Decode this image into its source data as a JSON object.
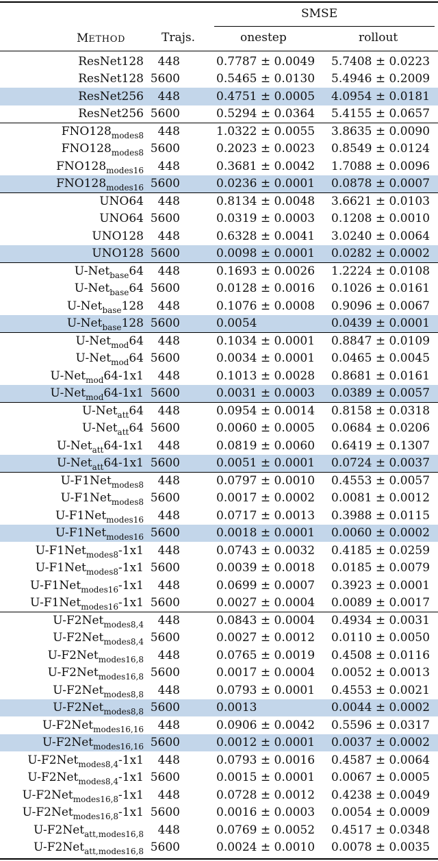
{
  "header": {
    "group_label": "SMSE",
    "method_label_first": "M",
    "method_label_rest": "ETHOD",
    "trajs_label": "Trajs.",
    "onestep_label": "onestep",
    "rollout_label": "rollout"
  },
  "rows": [
    {
      "base": "ResNet128",
      "sub": "",
      "suffix": "",
      "traj": "448",
      "onestep": "0.7787 ± 0.0049",
      "rollout": "5.7408 ± 0.0223",
      "highlight": false
    },
    {
      "base": "ResNet128",
      "sub": "",
      "suffix": "",
      "traj": "5600",
      "onestep": "0.5465 ± 0.0130",
      "rollout": "5.4946 ± 0.2009",
      "highlight": false
    },
    {
      "base": "ResNet256",
      "sub": "",
      "suffix": "",
      "traj": "448",
      "onestep": "0.4751 ± 0.0005",
      "rollout": "4.0954 ± 0.0181",
      "highlight": true
    },
    {
      "base": "ResNet256",
      "sub": "",
      "suffix": "",
      "traj": "5600",
      "onestep": "0.5294 ± 0.0364",
      "rollout": "5.4155 ± 0.0657",
      "highlight": false
    },
    {
      "base": "FNO128",
      "sub": "modes8",
      "suffix": "",
      "traj": "448",
      "onestep": "1.0322 ± 0.0055",
      "rollout": "3.8635 ± 0.0090",
      "highlight": false
    },
    {
      "base": "FNO128",
      "sub": "modes8",
      "suffix": "",
      "traj": "5600",
      "onestep": "0.2023 ± 0.0023",
      "rollout": "0.8549 ± 0.0124",
      "highlight": false
    },
    {
      "base": "FNO128",
      "sub": "modes16",
      "suffix": "",
      "traj": "448",
      "onestep": "0.3681 ± 0.0042",
      "rollout": "1.7088 ± 0.0096",
      "highlight": false
    },
    {
      "base": "FNO128",
      "sub": "modes16",
      "suffix": "",
      "traj": "5600",
      "onestep": "0.0236 ± 0.0001",
      "rollout": "0.0878 ± 0.0007",
      "highlight": true
    },
    {
      "base": "UNO64",
      "sub": "",
      "suffix": "",
      "traj": "448",
      "onestep": "0.8134 ± 0.0048",
      "rollout": "3.6621 ± 0.0103",
      "highlight": false
    },
    {
      "base": "UNO64",
      "sub": "",
      "suffix": "",
      "traj": "5600",
      "onestep": "0.0319 ± 0.0003",
      "rollout": "0.1208 ± 0.0010",
      "highlight": false
    },
    {
      "base": "UNO128",
      "sub": "",
      "suffix": "",
      "traj": "448",
      "onestep": "0.6328 ± 0.0041",
      "rollout": "3.0240 ± 0.0064",
      "highlight": false
    },
    {
      "base": "UNO128",
      "sub": "",
      "suffix": "",
      "traj": "5600",
      "onestep": "0.0098 ± 0.0001",
      "rollout": "0.0282 ± 0.0002",
      "highlight": true
    },
    {
      "base": "U-Net",
      "sub": "base",
      "suffix": "64",
      "traj": "448",
      "onestep": "0.1693 ± 0.0026",
      "rollout": "1.2224 ± 0.0108",
      "highlight": false
    },
    {
      "base": "U-Net",
      "sub": "base",
      "suffix": "64",
      "traj": "5600",
      "onestep": "0.0128 ± 0.0016",
      "rollout": "0.1026 ± 0.0161",
      "highlight": false
    },
    {
      "base": "U-Net",
      "sub": "base",
      "suffix": "128",
      "traj": "448",
      "onestep": "0.1076 ± 0.0008",
      "rollout": "0.9096 ± 0.0067",
      "highlight": false
    },
    {
      "base": "U-Net",
      "sub": "base",
      "suffix": "128",
      "traj": "5600",
      "onestep": "0.0054",
      "rollout": "0.0439 ± 0.0001",
      "highlight": true
    },
    {
      "base": "U-Net",
      "sub": "mod",
      "suffix": "64",
      "traj": "448",
      "onestep": "0.1034 ± 0.0001",
      "rollout": "0.8847 ± 0.0109",
      "highlight": false
    },
    {
      "base": "U-Net",
      "sub": "mod",
      "suffix": "64",
      "traj": "5600",
      "onestep": "0.0034 ± 0.0001",
      "rollout": "0.0465 ± 0.0045",
      "highlight": false
    },
    {
      "base": "U-Net",
      "sub": "mod",
      "suffix": "64-1x1",
      "traj": "448",
      "onestep": "0.1013 ± 0.0028",
      "rollout": "0.8681 ± 0.0161",
      "highlight": false
    },
    {
      "base": "U-Net",
      "sub": "mod",
      "suffix": "64-1x1",
      "traj": "5600",
      "onestep": "0.0031 ± 0.0003",
      "rollout": "0.0389 ± 0.0057",
      "highlight": true
    },
    {
      "base": "U-Net",
      "sub": "att",
      "suffix": "64",
      "traj": "448",
      "onestep": "0.0954 ± 0.0014",
      "rollout": "0.8158 ± 0.0318",
      "highlight": false
    },
    {
      "base": "U-Net",
      "sub": "att",
      "suffix": "64",
      "traj": "5600",
      "onestep": "0.0060 ± 0.0005",
      "rollout": "0.0684 ± 0.0206",
      "highlight": false
    },
    {
      "base": "U-Net",
      "sub": "att",
      "suffix": "64-1x1",
      "traj": "448",
      "onestep": "0.0819 ± 0.0060",
      "rollout": "0.6419 ± 0.1307",
      "highlight": false
    },
    {
      "base": "U-Net",
      "sub": "att",
      "suffix": "64-1x1",
      "traj": "5600",
      "onestep": "0.0051 ± 0.0001",
      "rollout": "0.0724 ± 0.0037",
      "highlight": true
    },
    {
      "base": "U-F1Net",
      "sub": "modes8",
      "suffix": "",
      "traj": "448",
      "onestep": "0.0797 ± 0.0010",
      "rollout": "0.4553 ± 0.0057",
      "highlight": false
    },
    {
      "base": "U-F1Net",
      "sub": "modes8",
      "suffix": "",
      "traj": "5600",
      "onestep": "0.0017 ± 0.0002",
      "rollout": "0.0081 ± 0.0012",
      "highlight": false
    },
    {
      "base": "U-F1Net",
      "sub": "modes16",
      "suffix": "",
      "traj": "448",
      "onestep": "0.0717 ± 0.0013",
      "rollout": "0.3988 ± 0.0115",
      "highlight": false
    },
    {
      "base": "U-F1Net",
      "sub": "modes16",
      "suffix": "",
      "traj": "5600",
      "onestep": "0.0018 ± 0.0001",
      "rollout": "0.0060 ± 0.0002",
      "highlight": true
    },
    {
      "base": "U-F1Net",
      "sub": "modes8",
      "suffix": "-1x1",
      "traj": "448",
      "onestep": "0.0743 ± 0.0032",
      "rollout": "0.4185 ± 0.0259",
      "highlight": false
    },
    {
      "base": "U-F1Net",
      "sub": "modes8",
      "suffix": "-1x1",
      "traj": "5600",
      "onestep": "0.0039 ± 0.0018",
      "rollout": "0.0185 ± 0.0079",
      "highlight": false
    },
    {
      "base": "U-F1Net",
      "sub": "modes16",
      "suffix": "-1x1",
      "traj": "448",
      "onestep": "0.0699 ± 0.0007",
      "rollout": "0.3923 ± 0.0001",
      "highlight": false
    },
    {
      "base": "U-F1Net",
      "sub": "modes16",
      "suffix": "-1x1",
      "traj": "5600",
      "onestep": "0.0027 ± 0.0004",
      "rollout": "0.0089 ± 0.0017",
      "highlight": false
    },
    {
      "base": "U-F2Net",
      "sub": "modes8,4",
      "suffix": "",
      "traj": "448",
      "onestep": "0.0843 ± 0.0004",
      "rollout": "0.4934 ± 0.0031",
      "highlight": false
    },
    {
      "base": "U-F2Net",
      "sub": "modes8,4",
      "suffix": "",
      "traj": "5600",
      "onestep": "0.0027 ± 0.0012",
      "rollout": "0.0110 ± 0.0050",
      "highlight": false
    },
    {
      "base": "U-F2Net",
      "sub": "modes16,8",
      "suffix": "",
      "traj": "448",
      "onestep": "0.0765 ± 0.0019",
      "rollout": "0.4508 ± 0.0116",
      "highlight": false
    },
    {
      "base": "U-F2Net",
      "sub": "modes16,8",
      "suffix": "",
      "traj": "5600",
      "onestep": "0.0017 ± 0.0004",
      "rollout": "0.0052 ± 0.0013",
      "highlight": false
    },
    {
      "base": "U-F2Net",
      "sub": "modes8,8",
      "suffix": "",
      "traj": "448",
      "onestep": "0.0793 ± 0.0001",
      "rollout": "0.4553 ± 0.0021",
      "highlight": false
    },
    {
      "base": "U-F2Net",
      "sub": "modes8,8",
      "suffix": "",
      "traj": "5600",
      "onestep": "0.0013",
      "rollout": "0.0044 ± 0.0002",
      "highlight": true
    },
    {
      "base": "U-F2Net",
      "sub": "modes16,16",
      "suffix": "",
      "traj": "448",
      "onestep": "0.0906 ± 0.0042",
      "rollout": "0.5596 ± 0.0317",
      "highlight": false
    },
    {
      "base": "U-F2Net",
      "sub": "modes16,16",
      "suffix": "",
      "traj": "5600",
      "onestep": "0.0012 ± 0.0001",
      "rollout": "0.0037 ± 0.0002",
      "highlight": true
    },
    {
      "base": "U-F2Net",
      "sub": "modes8,4",
      "suffix": "-1x1",
      "traj": "448",
      "onestep": "0.0793 ± 0.0016",
      "rollout": "0.4587 ± 0.0064",
      "highlight": false
    },
    {
      "base": "U-F2Net",
      "sub": "modes8,4",
      "suffix": "-1x1",
      "traj": "5600",
      "onestep": "0.0015 ± 0.0001",
      "rollout": "0.0067 ± 0.0005",
      "highlight": false
    },
    {
      "base": "U-F2Net",
      "sub": "modes16,8",
      "suffix": "-1x1",
      "traj": "448",
      "onestep": "0.0728 ± 0.0012",
      "rollout": "0.4238 ± 0.0049",
      "highlight": false
    },
    {
      "base": "U-F2Net",
      "sub": "modes16,8",
      "suffix": "-1x1",
      "traj": "5600",
      "onestep": "0.0016 ± 0.0003",
      "rollout": "0.0054 ± 0.0009",
      "highlight": false
    },
    {
      "base": "U-F2Net",
      "sub": "att,modes16,8",
      "suffix": "",
      "traj": "448",
      "onestep": "0.0769 ± 0.0052",
      "rollout": "0.4517 ± 0.0348",
      "highlight": false
    },
    {
      "base": "U-F2Net",
      "sub": "att,modes16,8",
      "suffix": "",
      "traj": "5600",
      "onestep": "0.0024 ± 0.0010",
      "rollout": "0.0078 ± 0.0035",
      "highlight": false
    }
  ],
  "colors": {
    "highlight": "#c3d6ea",
    "rule": "#000000",
    "text": "#111111"
  }
}
